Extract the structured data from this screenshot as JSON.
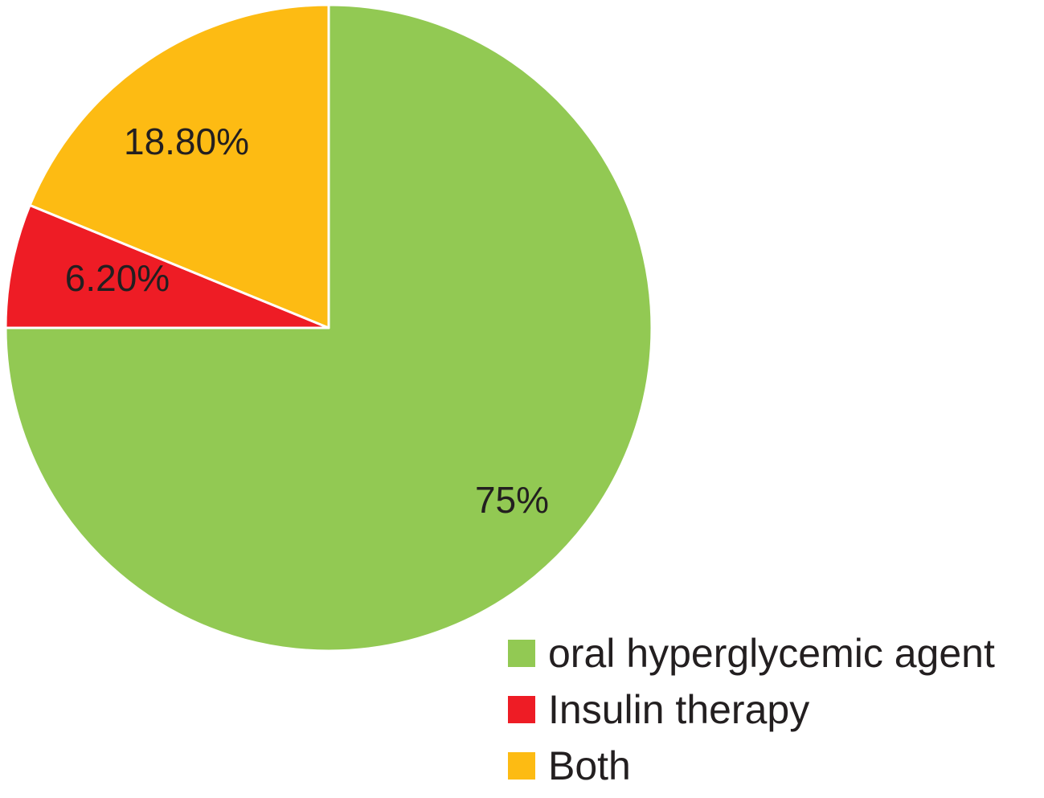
{
  "chart_data": {
    "type": "pie",
    "title": "",
    "start_angle_deg": 0,
    "direction": "clockwise",
    "slices": [
      {
        "name": "oral hyperglycemic agent",
        "value": 75,
        "label": "75%",
        "color": "#92c953"
      },
      {
        "name": "Insulin therapy",
        "value": 6.2,
        "label": "6.20%",
        "color": "#ee1c25"
      },
      {
        "name": "Both",
        "value": 18.8,
        "label": "18.80%",
        "color": "#fdbb13"
      }
    ],
    "legend": {
      "position": "bottom-right",
      "entries": [
        "oral hyperglycemic agent",
        "Insulin therapy",
        "Both"
      ]
    }
  }
}
